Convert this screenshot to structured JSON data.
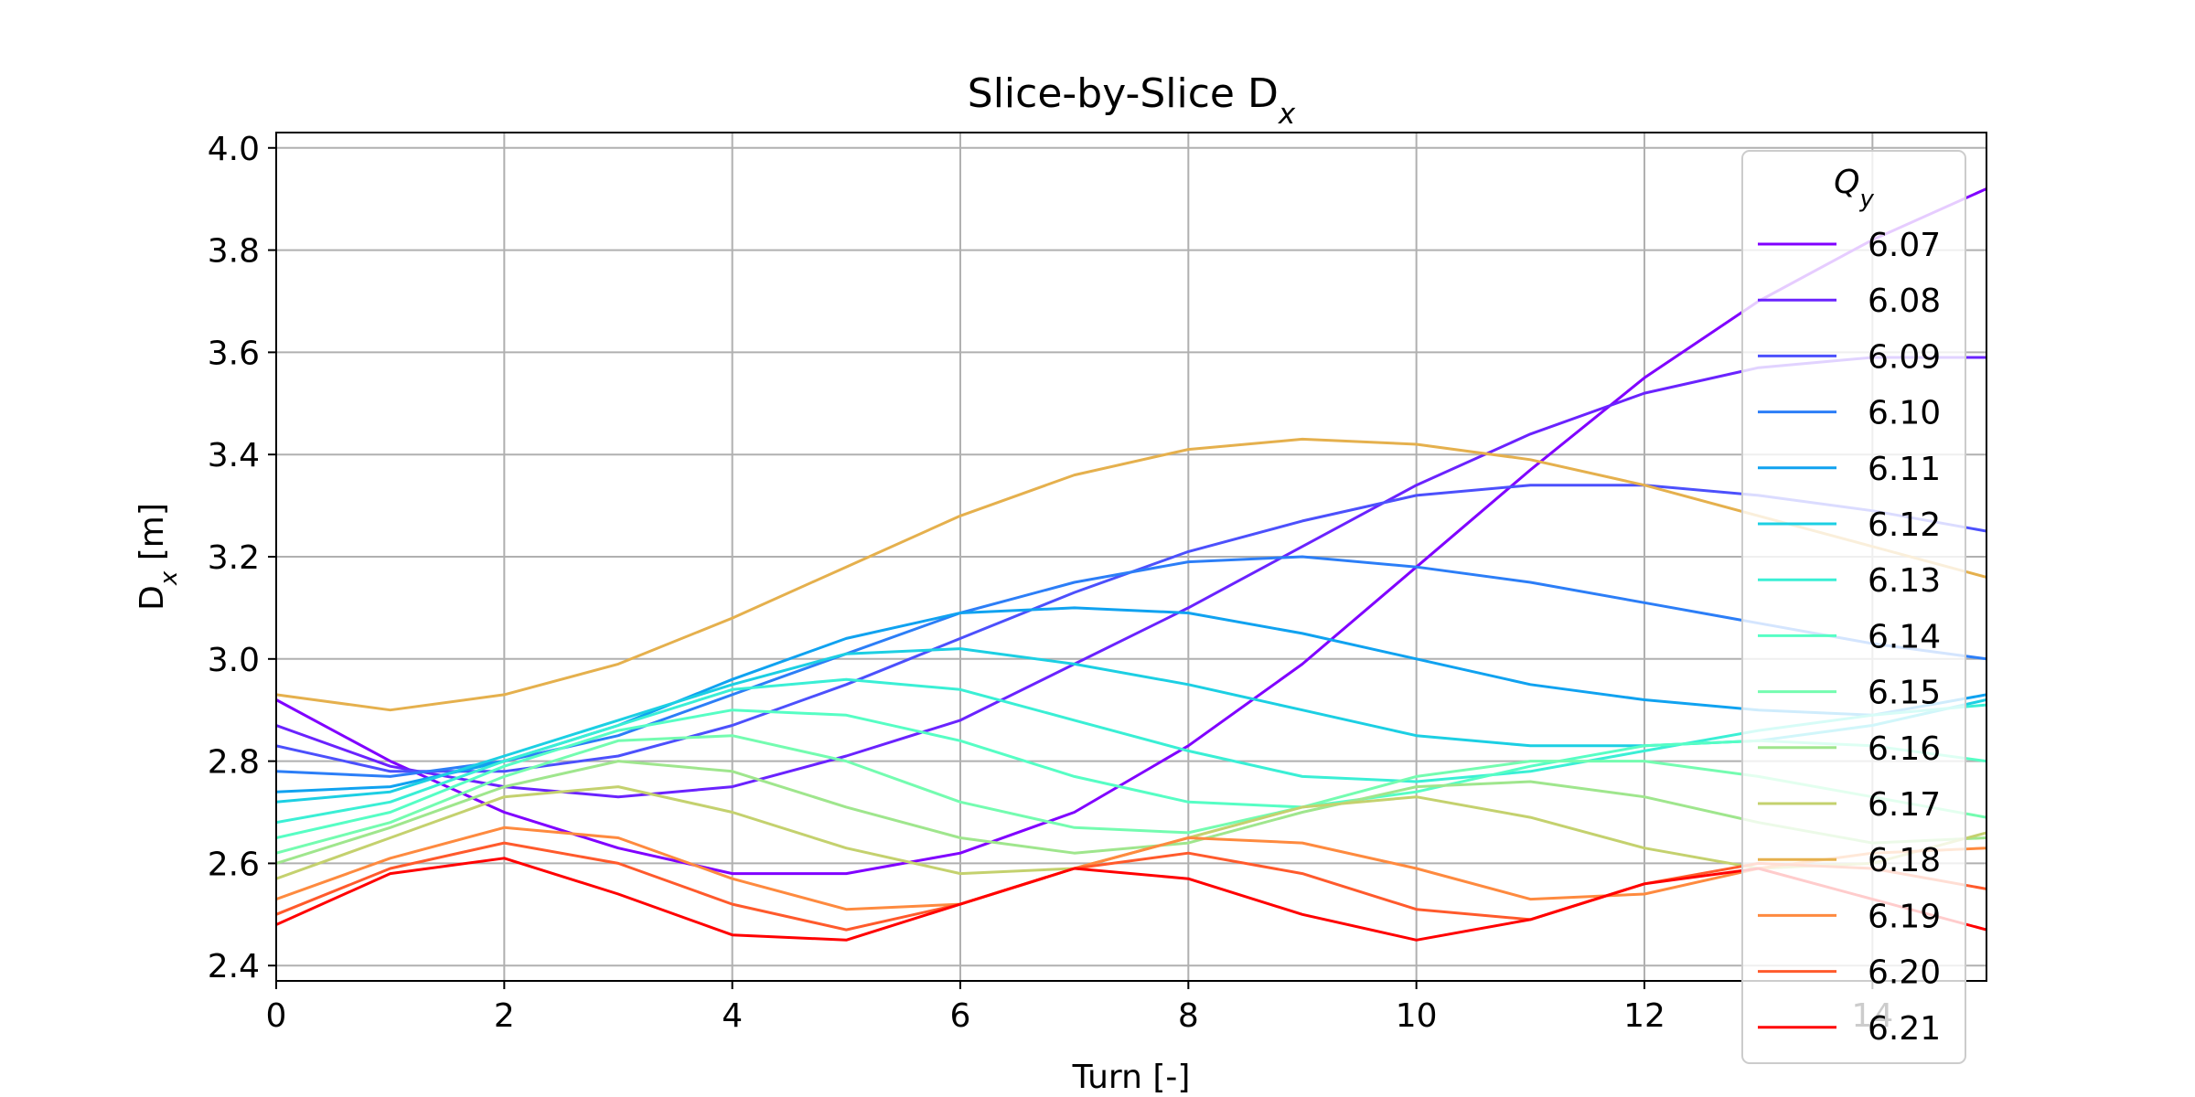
{
  "chart_data": {
    "type": "line",
    "title": "Slice-by-Slice D",
    "title_subscript": "x",
    "xlabel": "Turn [-]",
    "ylabel": "D",
    "ylabel_subscript": "x",
    "ylabel_unit": " [m]",
    "xlim": [
      0,
      15
    ],
    "ylim": [
      2.37,
      4.03
    ],
    "xticks": [
      0,
      2,
      4,
      6,
      8,
      10,
      12,
      14
    ],
    "yticks": [
      "2.4",
      "2.6",
      "2.8",
      "3.0",
      "3.2",
      "3.4",
      "3.6",
      "3.8",
      "4.0"
    ],
    "grid": true,
    "legend": {
      "title": "Q",
      "title_subscript": "y",
      "placement": "right"
    },
    "x": [
      0,
      1,
      2,
      3,
      4,
      5,
      6,
      7,
      8,
      9,
      10,
      11,
      12,
      13,
      14,
      15
    ],
    "series": [
      {
        "name": "6.07",
        "color": "#8000ff",
        "values": [
          2.92,
          2.8,
          2.7,
          2.63,
          2.58,
          2.58,
          2.62,
          2.7,
          2.83,
          2.99,
          3.18,
          3.37,
          3.55,
          3.7,
          3.82,
          3.92
        ]
      },
      {
        "name": "6.08",
        "color": "#6a23fe",
        "values": [
          2.87,
          2.79,
          2.75,
          2.73,
          2.75,
          2.81,
          2.88,
          2.99,
          3.1,
          3.22,
          3.34,
          3.44,
          3.52,
          3.57,
          3.59,
          3.59
        ]
      },
      {
        "name": "6.09",
        "color": "#4c50fc",
        "values": [
          2.83,
          2.78,
          2.78,
          2.81,
          2.87,
          2.95,
          3.04,
          3.13,
          3.21,
          3.27,
          3.32,
          3.34,
          3.34,
          3.32,
          3.29,
          3.25
        ]
      },
      {
        "name": "6.10",
        "color": "#2c7ef7",
        "values": [
          2.78,
          2.77,
          2.8,
          2.85,
          2.93,
          3.01,
          3.09,
          3.15,
          3.19,
          3.2,
          3.18,
          3.15,
          3.11,
          3.07,
          3.03,
          3.0
        ]
      },
      {
        "name": "6.11",
        "color": "#10a2f0",
        "values": [
          2.74,
          2.75,
          2.8,
          2.87,
          2.96,
          3.04,
          3.09,
          3.1,
          3.09,
          3.05,
          3.0,
          2.95,
          2.92,
          2.9,
          2.89,
          2.93
        ]
      },
      {
        "name": "6.12",
        "color": "#1ccfe3",
        "values": [
          2.72,
          2.74,
          2.81,
          2.88,
          2.95,
          3.01,
          3.02,
          2.99,
          2.95,
          2.9,
          2.85,
          2.83,
          2.83,
          2.84,
          2.87,
          2.92
        ]
      },
      {
        "name": "6.13",
        "color": "#3aefd5",
        "values": [
          2.68,
          2.72,
          2.8,
          2.87,
          2.94,
          2.96,
          2.94,
          2.88,
          2.82,
          2.77,
          2.76,
          2.78,
          2.82,
          2.86,
          2.89,
          2.91
        ]
      },
      {
        "name": "6.14",
        "color": "#56fec4",
        "values": [
          2.65,
          2.7,
          2.79,
          2.86,
          2.9,
          2.89,
          2.84,
          2.77,
          2.72,
          2.71,
          2.74,
          2.79,
          2.83,
          2.84,
          2.83,
          2.8
        ]
      },
      {
        "name": "6.15",
        "color": "#74fcb0",
        "values": [
          2.62,
          2.68,
          2.77,
          2.84,
          2.85,
          2.8,
          2.72,
          2.67,
          2.66,
          2.71,
          2.77,
          2.8,
          2.8,
          2.77,
          2.73,
          2.69
        ]
      },
      {
        "name": "6.16",
        "color": "#9fe68d",
        "values": [
          2.6,
          2.67,
          2.75,
          2.8,
          2.78,
          2.71,
          2.65,
          2.62,
          2.64,
          2.7,
          2.75,
          2.76,
          2.73,
          2.68,
          2.64,
          2.65
        ]
      },
      {
        "name": "6.17",
        "color": "#c4d16e",
        "values": [
          2.57,
          2.65,
          2.73,
          2.75,
          2.7,
          2.63,
          2.58,
          2.59,
          2.65,
          2.71,
          2.73,
          2.69,
          2.63,
          2.59,
          2.6,
          2.66
        ]
      },
      {
        "name": "6.18",
        "color": "#e5b04d",
        "values": [
          2.93,
          2.9,
          2.93,
          2.99,
          3.08,
          3.18,
          3.28,
          3.36,
          3.41,
          3.43,
          3.42,
          3.39,
          3.34,
          3.28,
          3.22,
          3.16
        ]
      },
      {
        "name": "6.19",
        "color": "#fe8a3f",
        "values": [
          2.53,
          2.61,
          2.67,
          2.65,
          2.57,
          2.51,
          2.52,
          2.59,
          2.65,
          2.64,
          2.59,
          2.53,
          2.54,
          2.59,
          2.62,
          2.63
        ]
      },
      {
        "name": "6.20",
        "color": "#ff5a2c",
        "values": [
          2.5,
          2.59,
          2.64,
          2.6,
          2.52,
          2.47,
          2.52,
          2.59,
          2.62,
          2.58,
          2.51,
          2.49,
          2.56,
          2.6,
          2.59,
          2.55
        ]
      },
      {
        "name": "6.21",
        "color": "#ff0000",
        "values": [
          2.48,
          2.58,
          2.61,
          2.54,
          2.46,
          2.45,
          2.52,
          2.59,
          2.57,
          2.5,
          2.45,
          2.49,
          2.56,
          2.59,
          2.53,
          2.47
        ]
      }
    ]
  }
}
